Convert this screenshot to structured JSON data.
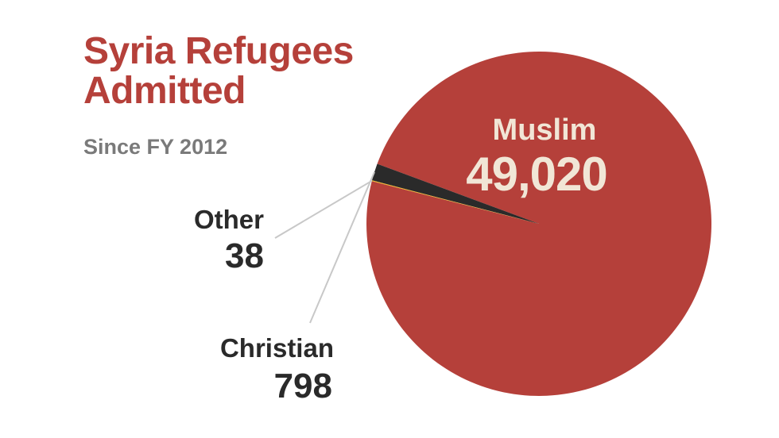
{
  "chart_data": {
    "type": "pie",
    "title": "Syria Refugees Admitted",
    "subtitle": "Since FY 2012",
    "slices": [
      {
        "name": "Muslim",
        "value": 49020,
        "label": "49,020",
        "color": "#b5403a"
      },
      {
        "name": "Christian",
        "value": 798,
        "label": "798",
        "color": "#2a2a2a"
      },
      {
        "name": "Other",
        "value": 38,
        "label": "38",
        "color": "#f0b323"
      }
    ]
  }
}
